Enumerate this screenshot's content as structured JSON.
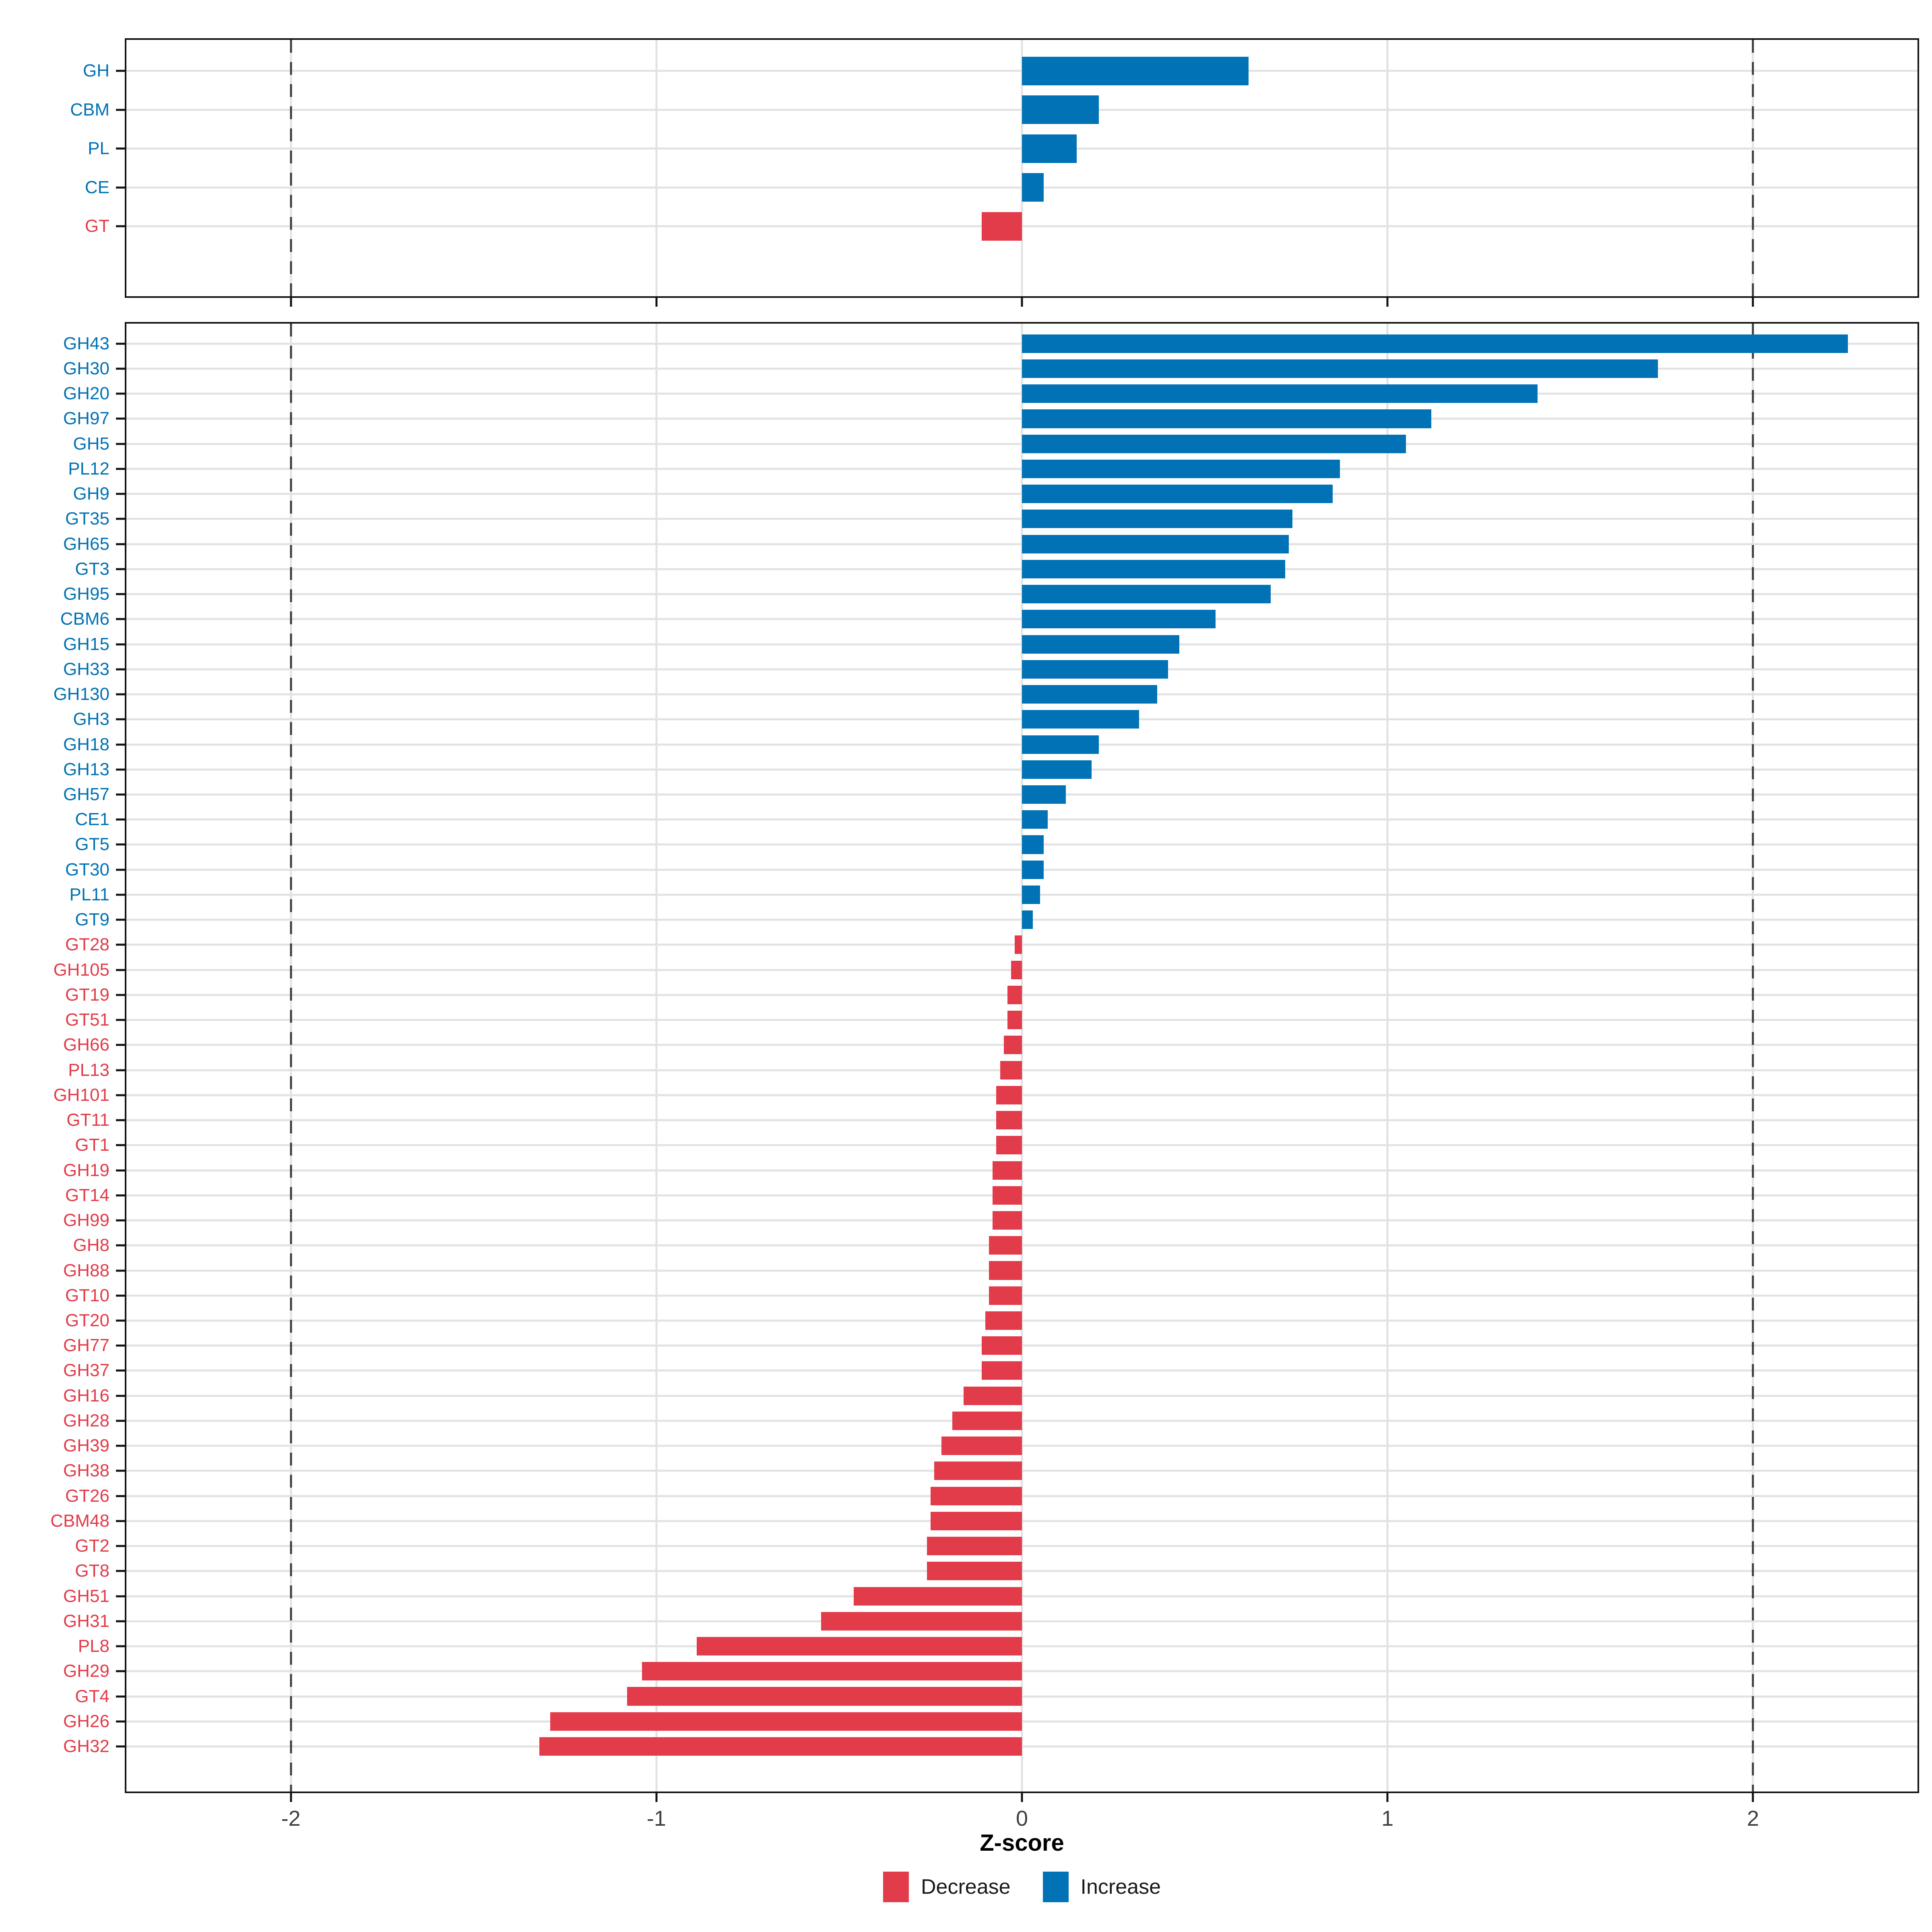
{
  "colors": {
    "increase": "#0072B5",
    "decrease": "#E23B49",
    "gridline": "#E2E2E2",
    "reference_line": "#3C3C3C",
    "axis_text": "#404040",
    "border": "#111111",
    "tick": "#111111"
  },
  "axis": {
    "title": "Z-score",
    "xmin": -2.45,
    "xmax": 2.45,
    "ticks": [
      -2,
      -1,
      0,
      1,
      2
    ],
    "tick_labels": [
      "-2",
      "-1",
      "0",
      "1",
      "2"
    ],
    "reference_lines": [
      -2,
      2
    ]
  },
  "legend": {
    "items": [
      {
        "label": "Decrease",
        "direction": "decrease"
      },
      {
        "label": "Increase",
        "direction": "increase"
      }
    ]
  },
  "chart_data": [
    {
      "type": "bar",
      "orientation": "horizontal",
      "panel": "cazyme-class-summary",
      "categories": [
        "GH",
        "CBM",
        "PL",
        "CE",
        "GT"
      ],
      "values": [
        0.62,
        0.21,
        0.15,
        0.06,
        -0.11
      ],
      "directions": [
        "increase",
        "increase",
        "increase",
        "increase",
        "decrease"
      ],
      "xlabel": "Z-score",
      "xlim": [
        -2.45,
        2.45
      ],
      "grid": true,
      "legend_position": "bottom"
    },
    {
      "type": "bar",
      "orientation": "horizontal",
      "panel": "cazyme-family-detail",
      "categories": [
        "GH43",
        "GH30",
        "GH20",
        "GH97",
        "GH5",
        "PL12",
        "GH9",
        "GT35",
        "GH65",
        "GT3",
        "GH95",
        "CBM6",
        "GH15",
        "GH33",
        "GH130",
        "GH3",
        "GH18",
        "GH13",
        "GH57",
        "CE1",
        "GT5",
        "GT30",
        "PL11",
        "GT9",
        "GT28",
        "GH105",
        "GT19",
        "GT51",
        "GH66",
        "PL13",
        "GH101",
        "GT11",
        "GT1",
        "GH19",
        "GT14",
        "GH99",
        "GH8",
        "GH88",
        "GT10",
        "GT20",
        "GH77",
        "GH37",
        "GH16",
        "GH28",
        "GH39",
        "GH38",
        "GT26",
        "CBM48",
        "GT2",
        "GT8",
        "GH51",
        "GH31",
        "PL8",
        "GH29",
        "GT4",
        "GH26",
        "GH32"
      ],
      "values": [
        2.26,
        1.74,
        1.41,
        1.12,
        1.05,
        0.87,
        0.85,
        0.74,
        0.73,
        0.72,
        0.68,
        0.53,
        0.43,
        0.4,
        0.37,
        0.32,
        0.21,
        0.19,
        0.12,
        0.07,
        0.06,
        0.06,
        0.05,
        0.03,
        -0.02,
        -0.03,
        -0.04,
        -0.04,
        -0.05,
        -0.06,
        -0.07,
        -0.07,
        -0.07,
        -0.08,
        -0.08,
        -0.08,
        -0.09,
        -0.09,
        -0.09,
        -0.1,
        -0.11,
        -0.11,
        -0.16,
        -0.19,
        -0.22,
        -0.24,
        -0.25,
        -0.25,
        -0.26,
        -0.26,
        -0.46,
        -0.55,
        -0.89,
        -1.04,
        -1.08,
        -1.29,
        -1.32
      ],
      "directions": [
        "increase",
        "increase",
        "increase",
        "increase",
        "increase",
        "increase",
        "increase",
        "increase",
        "increase",
        "increase",
        "increase",
        "increase",
        "increase",
        "increase",
        "increase",
        "increase",
        "increase",
        "increase",
        "increase",
        "increase",
        "increase",
        "increase",
        "increase",
        "increase",
        "decrease",
        "decrease",
        "decrease",
        "decrease",
        "decrease",
        "decrease",
        "decrease",
        "decrease",
        "decrease",
        "decrease",
        "decrease",
        "decrease",
        "decrease",
        "decrease",
        "decrease",
        "decrease",
        "decrease",
        "decrease",
        "decrease",
        "decrease",
        "decrease",
        "decrease",
        "decrease",
        "decrease",
        "decrease",
        "decrease",
        "decrease",
        "decrease",
        "decrease",
        "decrease",
        "decrease",
        "decrease",
        "decrease"
      ],
      "xlabel": "Z-score",
      "xlim": [
        -2.45,
        2.45
      ],
      "grid": true,
      "legend_position": "bottom"
    }
  ]
}
